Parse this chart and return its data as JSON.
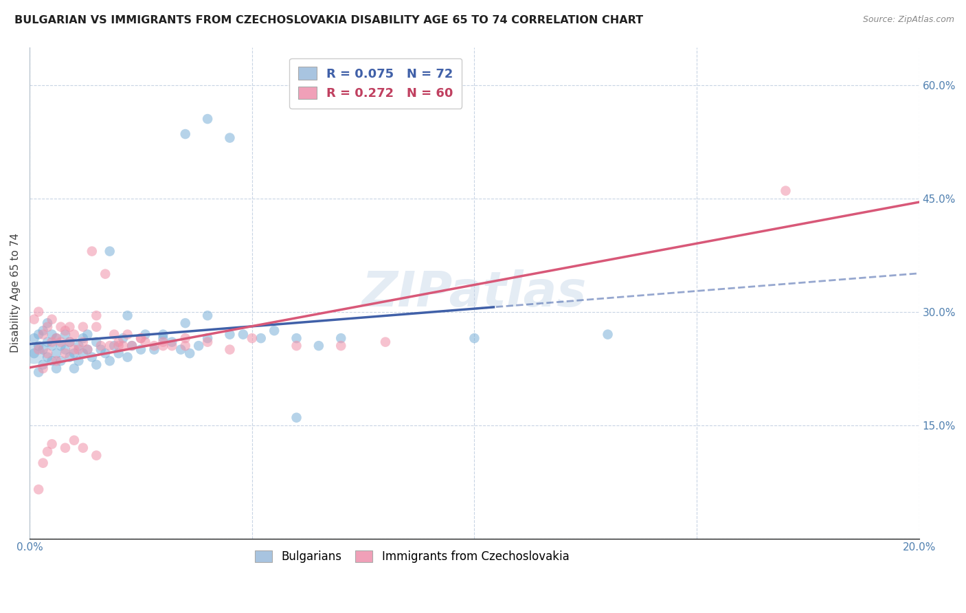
{
  "title": "BULGARIAN VS IMMIGRANTS FROM CZECHOSLOVAKIA DISABILITY AGE 65 TO 74 CORRELATION CHART",
  "source": "Source: ZipAtlas.com",
  "ylabel": "Disability Age 65 to 74",
  "xlim": [
    0.0,
    0.2
  ],
  "ylim": [
    0.0,
    0.65
  ],
  "yticks": [
    0.0,
    0.15,
    0.3,
    0.45,
    0.6
  ],
  "yticklabels": [
    "",
    "15.0%",
    "30.0%",
    "45.0%",
    "60.0%"
  ],
  "xtick_positions": [
    0.0,
    0.05,
    0.1,
    0.15,
    0.2
  ],
  "xticklabels": [
    "0.0%",
    "",
    "",
    "",
    "20.0%"
  ],
  "legend_labels": [
    "R = 0.075   N = 72",
    "R = 0.272   N = 60"
  ],
  "legend_colors": [
    "#a8c4e0",
    "#f0a0b8"
  ],
  "series1_color": "#7ab0d8",
  "series2_color": "#f090a8",
  "trendline1_color": "#4060a8",
  "trendline2_color": "#d85878",
  "bg_color": "#ffffff",
  "grid_color": "#c8d4e4",
  "watermark": "ZIPatlas",
  "legend1_R": "0.075",
  "legend1_N": "72",
  "legend2_R": "0.272",
  "legend2_N": "60"
}
